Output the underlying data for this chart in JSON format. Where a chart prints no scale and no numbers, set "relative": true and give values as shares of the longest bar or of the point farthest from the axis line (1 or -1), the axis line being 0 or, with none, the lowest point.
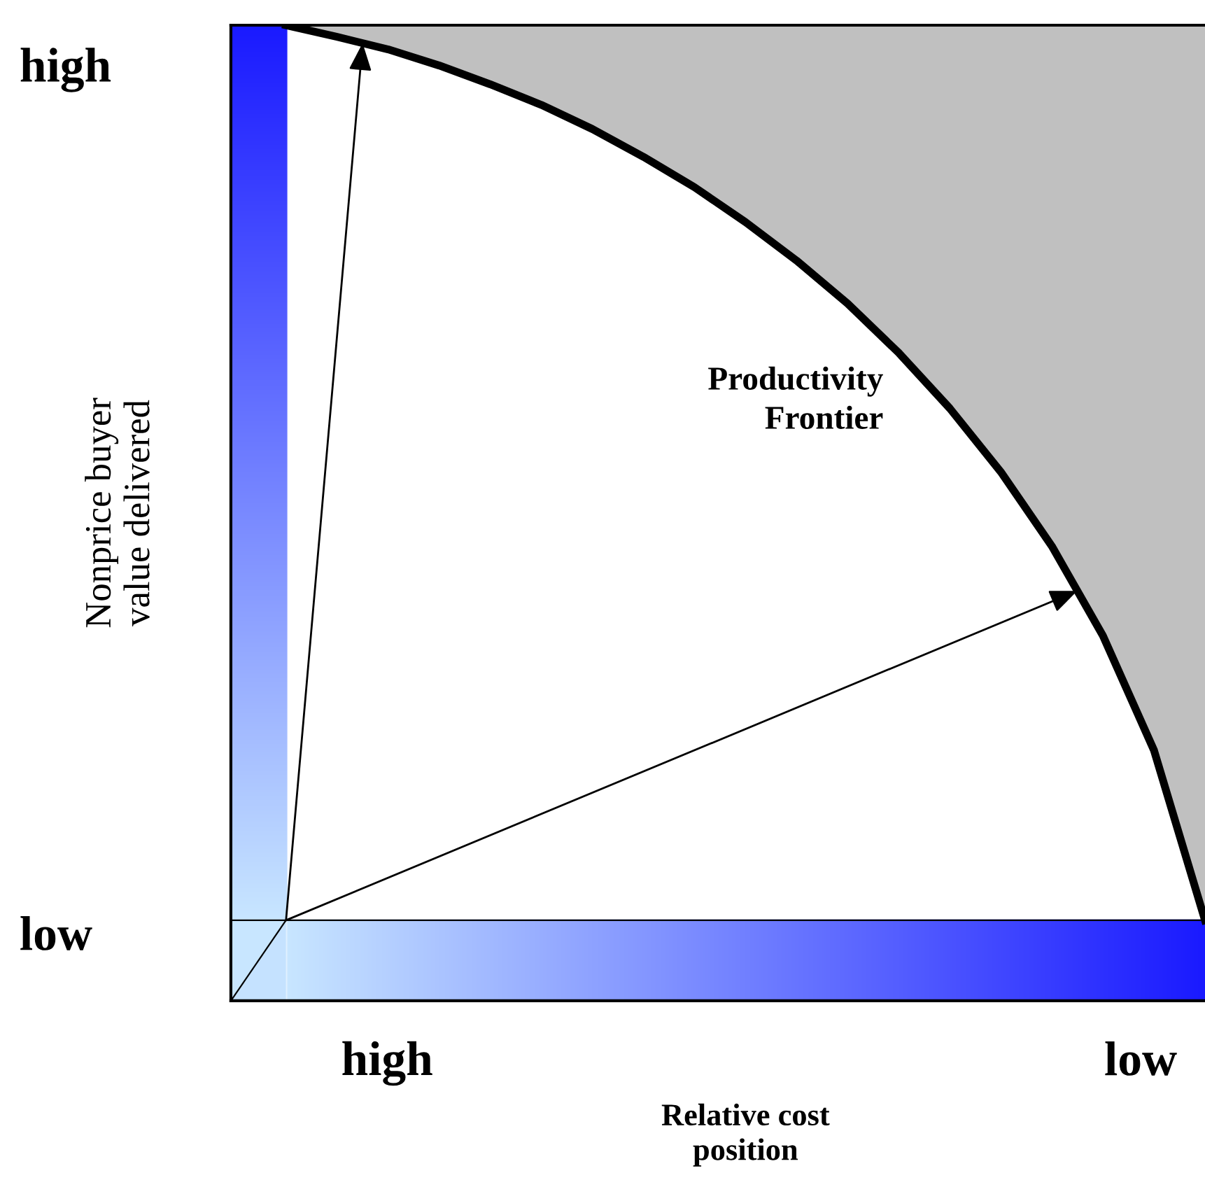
{
  "chart_data": {
    "type": "line",
    "ylabel": "Nonprice buyer\nvalue delivered",
    "relative": true,
    "categories": [
      null,
      null,
      null,
      null,
      null,
      null,
      null,
      null,
      null,
      null,
      null,
      null,
      null,
      null,
      null,
      null,
      null,
      null,
      null
    ],
    "annotations": [
      "high",
      "low",
      "high",
      "low",
      "Relative cost\nposition"
    ],
    "legend": false,
    "series": [
      {
        "name": "Productivity\nFrontier",
        "color": "#000000",
        "values": [
          1.0,
          0.987,
          0.973,
          0.955,
          0.934,
          0.911,
          0.884,
          0.853,
          0.819,
          0.78,
          0.737,
          0.689,
          0.634,
          0.572,
          0.501,
          0.418,
          0.318,
          0.19,
          0.0
        ],
        "lower": [
          1.0,
          0.987,
          0.973,
          0.955,
          0.934,
          0.911,
          0.884,
          0.853,
          0.819,
          0.78,
          0.737,
          0.689,
          0.634,
          0.572,
          0.501,
          0.418,
          0.318,
          0.19,
          0.0
        ],
        "upper": [
          1.0,
          1.0,
          1.0,
          1.0,
          1.0,
          1.0,
          1.0,
          1.0,
          1.0,
          1.0,
          1.0,
          1.0,
          1.0,
          1.0,
          1.0,
          1.0,
          1.0,
          1.0,
          1.0
        ]
      }
    ]
  }
}
